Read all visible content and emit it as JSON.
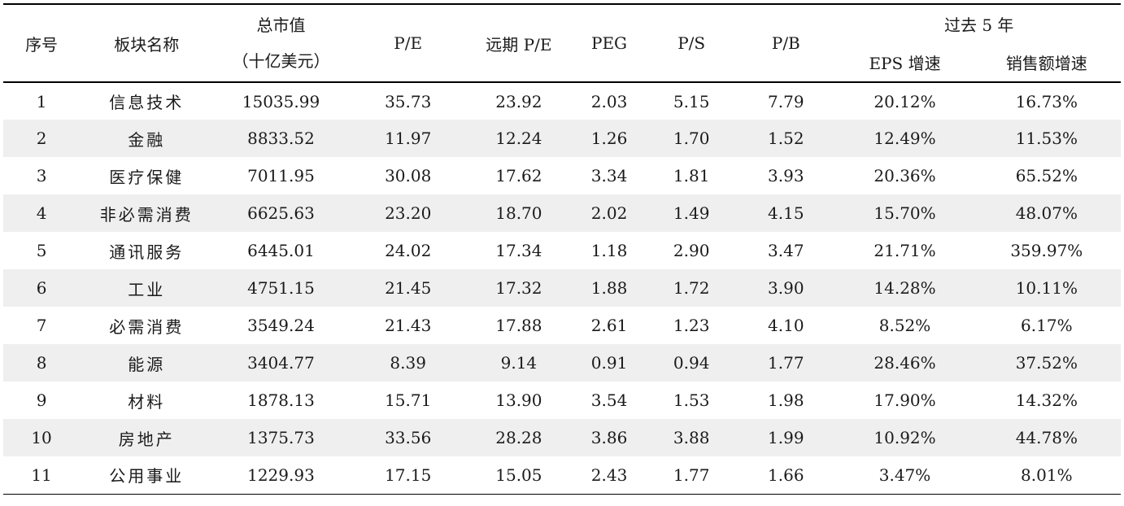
{
  "headers": {
    "index": "序号",
    "sector": "板块名称",
    "market_cap_line1": "总市值",
    "market_cap_line2": "（十亿美元）",
    "pe": "P/E",
    "forward_pe": "远期 P/E",
    "peg": "PEG",
    "ps": "P/S",
    "pb": "P/B",
    "past5": "过去 5 年",
    "eps_growth": "EPS 增速",
    "sales_growth": "销售额增速"
  },
  "rows": [
    {
      "idx": "1",
      "name": "信息技术",
      "cap": "15035.99",
      "pe": "35.73",
      "fpe": "23.92",
      "peg": "2.03",
      "ps": "5.15",
      "pb": "7.79",
      "eps": "20.12%",
      "sales": "16.73%"
    },
    {
      "idx": "2",
      "name": "金融",
      "cap": "8833.52",
      "pe": "11.97",
      "fpe": "12.24",
      "peg": "1.26",
      "ps": "1.70",
      "pb": "1.52",
      "eps": "12.49%",
      "sales": "11.53%"
    },
    {
      "idx": "3",
      "name": "医疗保健",
      "cap": "7011.95",
      "pe": "30.08",
      "fpe": "17.62",
      "peg": "3.34",
      "ps": "1.81",
      "pb": "3.93",
      "eps": "20.36%",
      "sales": "65.52%"
    },
    {
      "idx": "4",
      "name": "非必需消费",
      "cap": "6625.63",
      "pe": "23.20",
      "fpe": "18.70",
      "peg": "2.02",
      "ps": "1.49",
      "pb": "4.15",
      "eps": "15.70%",
      "sales": "48.07%"
    },
    {
      "idx": "5",
      "name": "通讯服务",
      "cap": "6445.01",
      "pe": "24.02",
      "fpe": "17.34",
      "peg": "1.18",
      "ps": "2.90",
      "pb": "3.47",
      "eps": "21.71%",
      "sales": "359.97%"
    },
    {
      "idx": "6",
      "name": "工业",
      "cap": "4751.15",
      "pe": "21.45",
      "fpe": "17.32",
      "peg": "1.88",
      "ps": "1.72",
      "pb": "3.90",
      "eps": "14.28%",
      "sales": "10.11%"
    },
    {
      "idx": "7",
      "name": "必需消费",
      "cap": "3549.24",
      "pe": "21.43",
      "fpe": "17.88",
      "peg": "2.61",
      "ps": "1.23",
      "pb": "4.10",
      "eps": "8.52%",
      "sales": "6.17%"
    },
    {
      "idx": "8",
      "name": "能源",
      "cap": "3404.77",
      "pe": "8.39",
      "fpe": "9.14",
      "peg": "0.91",
      "ps": "0.94",
      "pb": "1.77",
      "eps": "28.46%",
      "sales": "37.52%"
    },
    {
      "idx": "9",
      "name": "材料",
      "cap": "1878.13",
      "pe": "15.71",
      "fpe": "13.90",
      "peg": "3.54",
      "ps": "1.53",
      "pb": "1.98",
      "eps": "17.90%",
      "sales": "14.32%"
    },
    {
      "idx": "10",
      "name": "房地产",
      "cap": "1375.73",
      "pe": "33.56",
      "fpe": "28.28",
      "peg": "3.86",
      "ps": "3.88",
      "pb": "1.99",
      "eps": "10.92%",
      "sales": "44.78%"
    },
    {
      "idx": "11",
      "name": "公用事业",
      "cap": "1229.93",
      "pe": "17.15",
      "fpe": "15.05",
      "peg": "2.43",
      "ps": "1.77",
      "pb": "1.66",
      "eps": "3.47%",
      "sales": "8.01%"
    }
  ],
  "colors": {
    "shade": "#efefef",
    "rule": "#000000"
  }
}
